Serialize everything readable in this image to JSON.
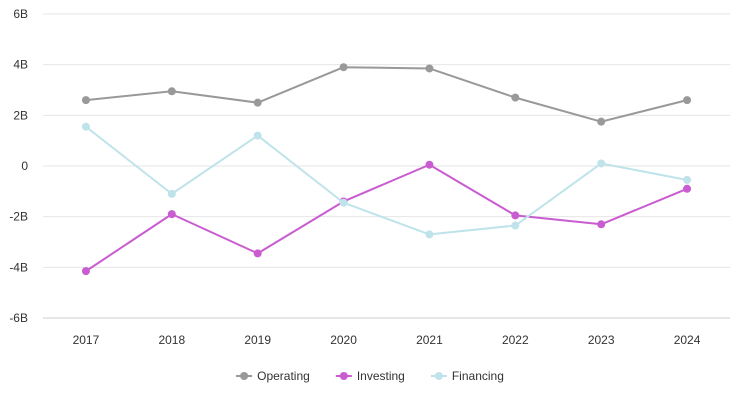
{
  "chart_data": {
    "type": "line",
    "title": "",
    "xlabel": "",
    "ylabel": "",
    "categories": [
      "2017",
      "2018",
      "2019",
      "2020",
      "2021",
      "2022",
      "2023",
      "2024"
    ],
    "ylim": [
      -6,
      6
    ],
    "yticks": [
      6,
      4,
      2,
      0,
      -2,
      -4,
      -6
    ],
    "ytick_labels": [
      "6B",
      "4B",
      "2B",
      "0",
      "-2B",
      "-4B",
      "-6B"
    ],
    "grid": true,
    "legend_position": "bottom",
    "series": [
      {
        "name": "Operating",
        "color": "#999999",
        "values": [
          2.6,
          2.95,
          2.5,
          3.9,
          3.85,
          2.7,
          1.75,
          2.6
        ]
      },
      {
        "name": "Investing",
        "color": "#c95cd0",
        "values": [
          -4.15,
          -1.9,
          -3.45,
          -1.4,
          0.05,
          -1.95,
          -2.3,
          -0.9
        ]
      },
      {
        "name": "Financing",
        "color": "#bfe3ea",
        "values": [
          1.55,
          -1.1,
          1.2,
          -1.45,
          -2.7,
          -2.35,
          0.1,
          -0.55
        ]
      }
    ]
  }
}
